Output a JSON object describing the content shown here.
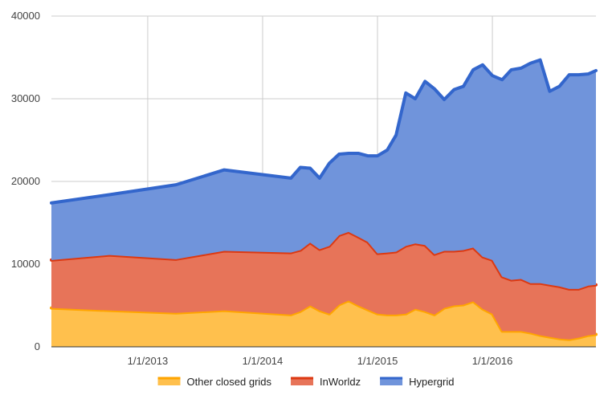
{
  "chart_data": {
    "type": "area",
    "stacked": true,
    "grid": true,
    "legend_position": "bottom",
    "xlim": [
      "2012-03-01",
      "2016-11-25"
    ],
    "ylim": [
      0,
      40000
    ],
    "x_ticks": [
      "2013-01-01",
      "2014-01-01",
      "2015-01-01",
      "2016-01-01"
    ],
    "x_tick_labels": [
      "1/1/2013",
      "1/1/2014",
      "1/1/2015",
      "1/1/2016"
    ],
    "y_ticks": [
      0,
      10000,
      20000,
      30000,
      40000
    ],
    "y_tick_labels": [
      "0",
      "10000",
      "20000",
      "30000",
      "40000"
    ],
    "x": [
      "2012-03-01",
      "2012-09-01",
      "2013-04-01",
      "2013-09-01",
      "2014-04-01",
      "2014-05-01",
      "2014-06-01",
      "2014-07-01",
      "2014-08-01",
      "2014-09-01",
      "2014-10-01",
      "2014-11-01",
      "2014-12-01",
      "2015-01-01",
      "2015-02-01",
      "2015-03-01",
      "2015-04-01",
      "2015-05-01",
      "2015-06-01",
      "2015-07-01",
      "2015-08-01",
      "2015-09-01",
      "2015-10-01",
      "2015-11-01",
      "2015-12-01",
      "2016-01-01",
      "2016-02-01",
      "2016-03-01",
      "2016-04-01",
      "2016-05-01",
      "2016-06-01",
      "2016-07-01",
      "2016-08-01",
      "2016-09-01",
      "2016-10-01",
      "2016-11-01",
      "2016-11-25"
    ],
    "series": [
      {
        "name": "Other closed grids",
        "color": "#FFA500",
        "values": [
          4700,
          4400,
          4100,
          4400,
          3900,
          4300,
          5000,
          4400,
          4000,
          5100,
          5600,
          5000,
          4500,
          4000,
          3900,
          3900,
          4000,
          4600,
          4300,
          3900,
          4700,
          5000,
          5100,
          5500,
          4600,
          4000,
          1900,
          1900,
          1900,
          1700,
          1400,
          1200,
          1000,
          900,
          1100,
          1400,
          1500
        ]
      },
      {
        "name": "InWorldz",
        "color": "#DC3912",
        "values": [
          5800,
          6700,
          6500,
          7200,
          7500,
          7400,
          7600,
          7400,
          8200,
          8400,
          8300,
          8300,
          8200,
          7300,
          7500,
          7600,
          8200,
          7900,
          8000,
          7300,
          6900,
          6600,
          6600,
          6500,
          6300,
          6500,
          6600,
          6200,
          6300,
          6000,
          6300,
          6300,
          6300,
          6100,
          5900,
          6000,
          6000
        ]
      },
      {
        "name": "Hypergrid",
        "color": "#3366CC",
        "values": [
          6900,
          7300,
          9000,
          9800,
          9000,
          10000,
          9000,
          8600,
          10000,
          9800,
          9500,
          10100,
          10400,
          11800,
          12400,
          14100,
          18500,
          17500,
          19800,
          20000,
          18300,
          19500,
          19800,
          21500,
          23200,
          22300,
          23800,
          25400,
          25500,
          26600,
          27000,
          23400,
          24200,
          25900,
          25900,
          25600,
          25900
        ]
      }
    ]
  }
}
